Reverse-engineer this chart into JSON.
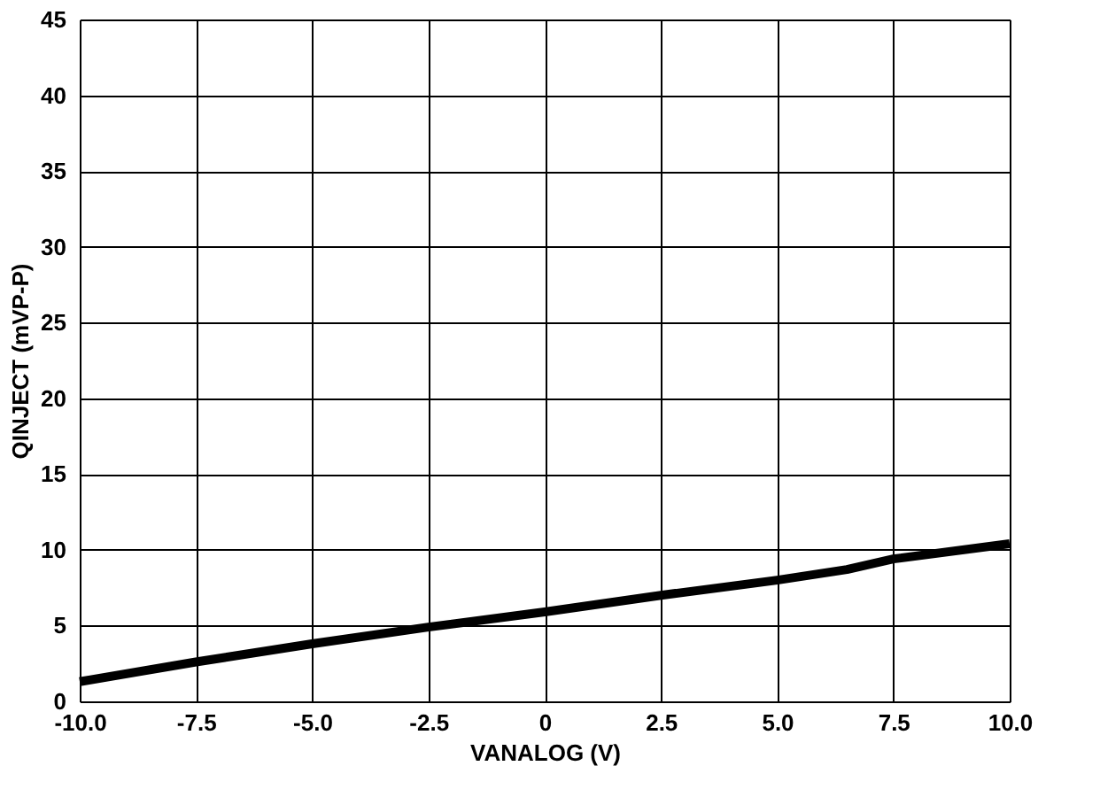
{
  "chart_data": {
    "type": "line",
    "xlabel": "VANALOG (V)",
    "ylabel": "QINJECT (mVP-P)",
    "x": [
      -10,
      -7.5,
      -5,
      -2.5,
      0,
      2.5,
      5,
      6.5,
      7.5,
      10
    ],
    "series": [
      {
        "color": "#000000",
        "values": [
          1.3,
          2.6,
          3.8,
          4.9,
          5.9,
          7.0,
          8.0,
          8.7,
          9.4,
          10.4
        ]
      }
    ],
    "xlim": [
      -10,
      10
    ],
    "ylim": [
      0,
      45
    ],
    "xticks": [
      {
        "value": -10,
        "label": "-10.0"
      },
      -7.5,
      {
        "value": -5,
        "label": "-5.0"
      },
      -2.5,
      0,
      2.5,
      {
        "value": 5,
        "label": "5.0"
      },
      7.5,
      {
        "value": 10,
        "label": "10.0"
      }
    ],
    "yticks": [
      0,
      5,
      10,
      15,
      20,
      25,
      30,
      35,
      40,
      45
    ],
    "grid": true,
    "legend": false,
    "marker": "none",
    "line_style": "solid"
  }
}
